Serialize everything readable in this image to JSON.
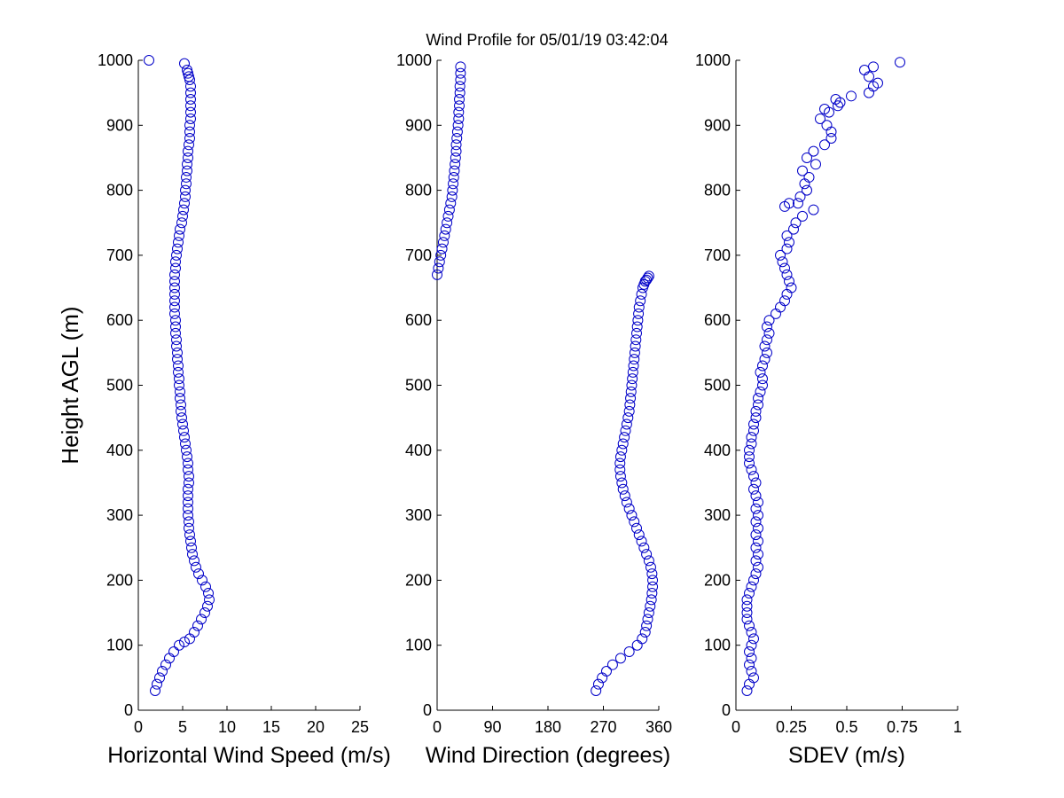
{
  "figure": {
    "title": "Wind Profile for  05/01/19 03:42:04"
  },
  "chart_data": [
    {
      "type": "scatter",
      "xlabel": "Horizontal Wind Speed (m/s)",
      "ylabel": "Height AGL (m)",
      "xlim": [
        0,
        25
      ],
      "ylim": [
        0,
        1000
      ],
      "xticks": [
        0,
        5,
        10,
        15,
        20,
        25
      ],
      "yticks": [
        0,
        100,
        200,
        300,
        400,
        500,
        600,
        700,
        800,
        900,
        1000
      ],
      "grid": false,
      "marker_color": "#0000c8",
      "series": [
        {
          "x": [
            1.9,
            2.1,
            2.4,
            2.7,
            3.1,
            3.5,
            4.0,
            4.6,
            5.2,
            5.8,
            6.3,
            6.7,
            7.1,
            7.5,
            7.8,
            8.0,
            7.9,
            7.6,
            7.2,
            6.8,
            6.5,
            6.3,
            6.1,
            6.0,
            5.9,
            5.8,
            5.7,
            5.7,
            5.6,
            5.6,
            5.6,
            5.6,
            5.6,
            5.7,
            5.7,
            5.6,
            5.6,
            5.5,
            5.4,
            5.3,
            5.2,
            5.1,
            5.0,
            4.9,
            4.8,
            4.8,
            4.7,
            4.7,
            4.6,
            4.6,
            4.5,
            4.5,
            4.4,
            4.4,
            4.3,
            4.3,
            4.2,
            4.2,
            4.2,
            4.1,
            4.1,
            4.1,
            4.1,
            4.1,
            4.1,
            4.1,
            4.2,
            4.2,
            4.3,
            4.4,
            4.5,
            4.6,
            4.7,
            4.9,
            5.0,
            5.1,
            5.2,
            5.3,
            5.3,
            5.4,
            5.4,
            5.5,
            5.5,
            5.6,
            5.6,
            5.7,
            5.8,
            5.8,
            5.8,
            5.9,
            5.9,
            5.9,
            5.9,
            5.9,
            5.9,
            5.8,
            5.7,
            5.6,
            5.5,
            5.2,
            1.2
          ],
          "y": [
            30,
            40,
            50,
            60,
            70,
            80,
            90,
            100,
            105,
            110,
            120,
            130,
            140,
            150,
            160,
            170,
            180,
            190,
            200,
            210,
            220,
            230,
            240,
            250,
            260,
            270,
            280,
            290,
            300,
            310,
            320,
            330,
            340,
            350,
            360,
            370,
            380,
            390,
            400,
            410,
            420,
            430,
            440,
            450,
            460,
            470,
            480,
            490,
            500,
            510,
            520,
            530,
            540,
            550,
            560,
            570,
            580,
            590,
            600,
            610,
            620,
            630,
            640,
            650,
            660,
            670,
            680,
            690,
            700,
            710,
            720,
            730,
            740,
            750,
            760,
            770,
            780,
            790,
            800,
            810,
            820,
            830,
            840,
            850,
            860,
            870,
            880,
            890,
            900,
            910,
            920,
            930,
            940,
            950,
            960,
            970,
            975,
            980,
            985,
            995,
            1000
          ]
        }
      ]
    },
    {
      "type": "scatter",
      "xlabel": "Wind Direction (degrees)",
      "ylabel": "",
      "xlim": [
        0,
        360
      ],
      "ylim": [
        0,
        1000
      ],
      "xticks": [
        0,
        90,
        180,
        270,
        360
      ],
      "yticks": [
        0,
        100,
        200,
        300,
        400,
        500,
        600,
        700,
        800,
        900,
        1000
      ],
      "grid": false,
      "marker_color": "#0000c8",
      "series": [
        {
          "x": [
            258,
            262,
            268,
            275,
            285,
            298,
            312,
            325,
            333,
            338,
            340,
            342,
            344,
            346,
            348,
            349,
            350,
            350,
            349,
            347,
            344,
            340,
            336,
            332,
            328,
            324,
            320,
            316,
            312,
            308,
            305,
            302,
            300,
            298,
            297,
            297,
            298,
            300,
            302,
            304,
            306,
            308,
            310,
            312,
            313,
            314,
            315,
            316,
            317,
            318,
            319,
            320,
            321,
            322,
            323,
            324,
            325,
            326,
            327,
            328,
            330,
            332,
            334,
            336,
            338,
            340,
            342,
            344,
            0,
            2,
            4,
            6,
            8,
            10,
            12,
            14,
            16,
            18,
            20,
            22,
            24,
            25,
            26,
            27,
            28,
            29,
            30,
            31,
            31,
            32,
            33,
            34,
            35,
            35,
            36,
            36,
            37,
            37,
            38,
            38,
            38
          ],
          "y": [
            30,
            40,
            50,
            60,
            70,
            80,
            90,
            100,
            110,
            120,
            130,
            140,
            150,
            160,
            170,
            180,
            190,
            200,
            210,
            220,
            230,
            240,
            250,
            260,
            270,
            280,
            290,
            300,
            310,
            320,
            330,
            340,
            350,
            360,
            370,
            380,
            390,
            400,
            410,
            420,
            430,
            440,
            450,
            460,
            470,
            480,
            490,
            500,
            510,
            520,
            530,
            540,
            550,
            560,
            570,
            580,
            590,
            600,
            610,
            620,
            630,
            640,
            650,
            655,
            660,
            662,
            665,
            668,
            670,
            680,
            690,
            700,
            710,
            720,
            730,
            740,
            750,
            760,
            770,
            780,
            790,
            800,
            810,
            820,
            830,
            840,
            850,
            860,
            870,
            880,
            890,
            900,
            910,
            920,
            930,
            940,
            950,
            960,
            970,
            980,
            990
          ]
        }
      ]
    },
    {
      "type": "scatter",
      "xlabel": "SDEV  (m/s)",
      "ylabel": "",
      "xlim": [
        0,
        1
      ],
      "ylim": [
        0,
        1000
      ],
      "xticks": [
        0,
        0.25,
        0.5,
        0.75,
        1
      ],
      "yticks": [
        0,
        100,
        200,
        300,
        400,
        500,
        600,
        700,
        800,
        900,
        1000
      ],
      "grid": false,
      "marker_color": "#0000c8",
      "series": [
        {
          "x": [
            0.05,
            0.06,
            0.08,
            0.07,
            0.06,
            0.07,
            0.06,
            0.07,
            0.08,
            0.07,
            0.06,
            0.05,
            0.05,
            0.05,
            0.05,
            0.06,
            0.07,
            0.08,
            0.09,
            0.1,
            0.09,
            0.1,
            0.09,
            0.1,
            0.09,
            0.1,
            0.09,
            0.1,
            0.09,
            0.1,
            0.09,
            0.08,
            0.09,
            0.08,
            0.07,
            0.06,
            0.06,
            0.06,
            0.07,
            0.07,
            0.08,
            0.08,
            0.09,
            0.09,
            0.1,
            0.1,
            0.11,
            0.12,
            0.12,
            0.11,
            0.12,
            0.13,
            0.14,
            0.13,
            0.14,
            0.15,
            0.14,
            0.15,
            0.18,
            0.2,
            0.22,
            0.23,
            0.25,
            0.24,
            0.23,
            0.22,
            0.21,
            0.2,
            0.23,
            0.24,
            0.23,
            0.26,
            0.27,
            0.3,
            0.35,
            0.28,
            0.29,
            0.32,
            0.24,
            0.22,
            0.31,
            0.33,
            0.36,
            0.3,
            0.32,
            0.35,
            0.4,
            0.43,
            0.41,
            0.38,
            0.42,
            0.46,
            0.4,
            0.45,
            0.43,
            0.47,
            0.52,
            0.6,
            0.62,
            0.58,
            0.64,
            0.6,
            0.62,
            0.74
          ],
          "y": [
            30,
            40,
            50,
            60,
            70,
            80,
            90,
            100,
            110,
            120,
            130,
            140,
            150,
            160,
            170,
            180,
            190,
            200,
            210,
            220,
            230,
            240,
            250,
            260,
            270,
            280,
            290,
            300,
            310,
            320,
            330,
            340,
            350,
            360,
            370,
            380,
            390,
            400,
            410,
            420,
            430,
            440,
            450,
            460,
            470,
            480,
            490,
            500,
            510,
            520,
            530,
            540,
            550,
            560,
            570,
            580,
            590,
            600,
            610,
            620,
            630,
            640,
            650,
            660,
            670,
            680,
            690,
            700,
            710,
            720,
            730,
            740,
            750,
            760,
            770,
            780,
            790,
            800,
            780,
            775,
            810,
            820,
            840,
            830,
            850,
            860,
            870,
            880,
            900,
            910,
            920,
            930,
            925,
            940,
            890,
            935,
            945,
            950,
            960,
            985,
            965,
            975,
            990,
            997
          ]
        }
      ]
    }
  ]
}
